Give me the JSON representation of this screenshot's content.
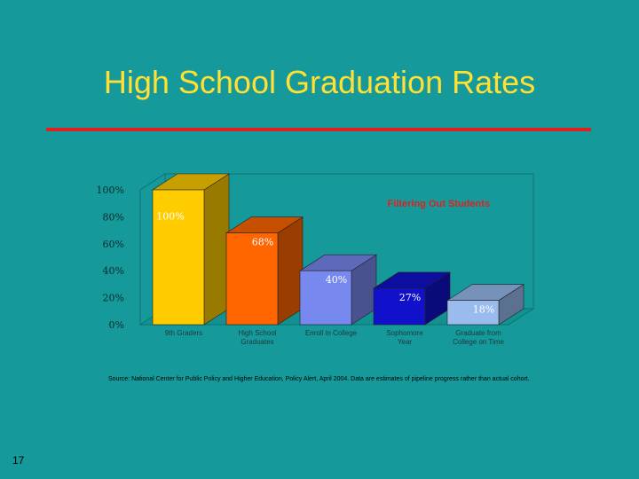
{
  "slide": {
    "title": "High School Graduation Rates",
    "source": "Source: National Center for Public Policy and Higher Education, Policy Alert, April 2004. Data are estimates of pipeline progress rather than actual cohort.",
    "page_number": "17"
  },
  "colors": {
    "background": "#16999a",
    "title": "#ffe033",
    "rule": "#e02020",
    "annotation": "#e02020"
  },
  "chart_data": {
    "type": "bar",
    "title": "",
    "annotation": "Filtering Out Students",
    "categories": [
      "9th Graders",
      "High School Graduates",
      "Enroll in College",
      "Sophomore Year",
      "Graduate from College on Time"
    ],
    "category_lines": [
      [
        "9th Graders"
      ],
      [
        "High School",
        "Graduates"
      ],
      [
        "Enroll in College"
      ],
      [
        "Sophomore",
        "Year"
      ],
      [
        "Graduate from",
        "College on Time"
      ]
    ],
    "values": [
      100,
      68,
      40,
      27,
      18
    ],
    "data_labels": [
      "100%",
      "68%",
      "40%",
      "27%",
      "18%"
    ],
    "bar_colors": [
      "#ffcc00",
      "#ff6600",
      "#7788ee",
      "#1111cc",
      "#99bbee"
    ],
    "yticks": [
      "0%",
      "20%",
      "40%",
      "60%",
      "80%",
      "100%"
    ],
    "ylim": [
      0,
      100
    ],
    "xlabel": "",
    "ylabel": "",
    "grid": false,
    "three_d": true
  }
}
